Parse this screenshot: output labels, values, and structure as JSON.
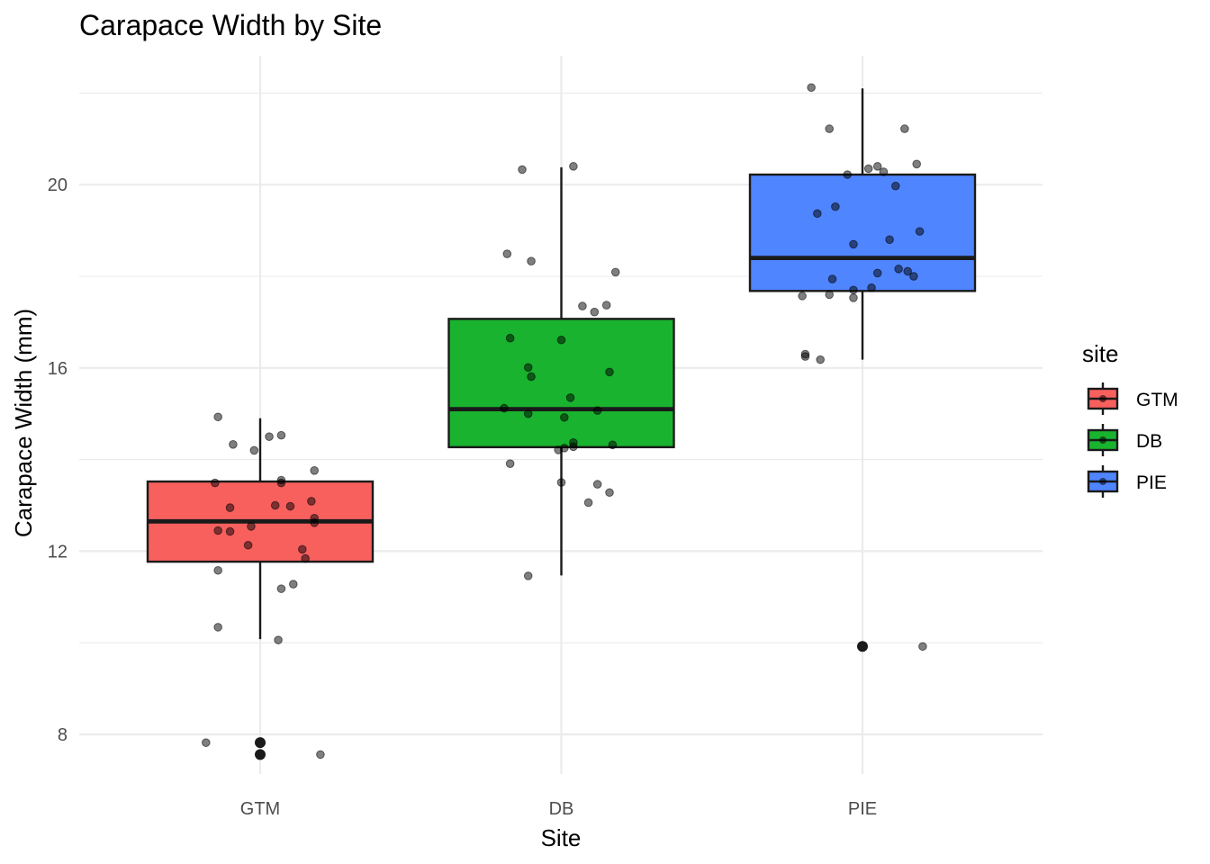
{
  "chart_data": {
    "type": "box",
    "title": "Carapace Width by Site",
    "xlabel": "Site",
    "ylabel": "Carapace Width (mm)",
    "ylim": [
      6.8,
      23.0
    ],
    "yticks": [
      8,
      12,
      16,
      20
    ],
    "grid": true,
    "legend": {
      "title": "site",
      "position": "right"
    },
    "categories": [
      "GTM",
      "DB",
      "PIE"
    ],
    "colors": {
      "GTM": "#f8605e",
      "DB": "#19b32f",
      "PIE": "#4f85ff"
    },
    "boxes": [
      {
        "name": "GTM",
        "q1": 11.77,
        "median": 12.65,
        "q3": 13.52,
        "whisker_low": 10.08,
        "whisker_high": 14.9,
        "outliers": [
          7.82,
          7.56
        ]
      },
      {
        "name": "DB",
        "q1": 14.27,
        "median": 15.1,
        "q3": 17.07,
        "whisker_low": 11.47,
        "whisker_high": 20.38,
        "outliers": []
      },
      {
        "name": "PIE",
        "q1": 17.68,
        "median": 18.4,
        "q3": 20.22,
        "whisker_low": 16.18,
        "whisker_high": 22.1,
        "outliers": [
          9.92
        ]
      }
    ],
    "points": [
      {
        "site": "GTM",
        "dx": -0.18,
        "y": 7.82
      },
      {
        "site": "GTM",
        "dx": 0.2,
        "y": 7.56
      },
      {
        "site": "GTM",
        "dx": -0.14,
        "y": 14.93
      },
      {
        "site": "GTM",
        "dx": -0.09,
        "y": 14.33
      },
      {
        "site": "GTM",
        "dx": -0.02,
        "y": 14.2
      },
      {
        "site": "GTM",
        "dx": 0.03,
        "y": 14.5
      },
      {
        "site": "GTM",
        "dx": 0.07,
        "y": 14.53
      },
      {
        "site": "GTM",
        "dx": 0.18,
        "y": 13.76
      },
      {
        "site": "GTM",
        "dx": -0.15,
        "y": 13.49
      },
      {
        "site": "GTM",
        "dx": 0.07,
        "y": 13.55
      },
      {
        "site": "GTM",
        "dx": 0.07,
        "y": 13.49
      },
      {
        "site": "GTM",
        "dx": 0.17,
        "y": 13.09
      },
      {
        "site": "GTM",
        "dx": -0.1,
        "y": 12.95
      },
      {
        "site": "GTM",
        "dx": 0.05,
        "y": 13.0
      },
      {
        "site": "GTM",
        "dx": 0.1,
        "y": 12.98
      },
      {
        "site": "GTM",
        "dx": 0.18,
        "y": 12.72
      },
      {
        "site": "GTM",
        "dx": 0.18,
        "y": 12.62
      },
      {
        "site": "GTM",
        "dx": -0.03,
        "y": 12.54
      },
      {
        "site": "GTM",
        "dx": -0.14,
        "y": 12.45
      },
      {
        "site": "GTM",
        "dx": -0.1,
        "y": 12.43
      },
      {
        "site": "GTM",
        "dx": -0.04,
        "y": 12.13
      },
      {
        "site": "GTM",
        "dx": 0.14,
        "y": 12.04
      },
      {
        "site": "GTM",
        "dx": 0.15,
        "y": 11.84
      },
      {
        "site": "GTM",
        "dx": -0.14,
        "y": 11.58
      },
      {
        "site": "GTM",
        "dx": 0.11,
        "y": 11.28
      },
      {
        "site": "GTM",
        "dx": 0.07,
        "y": 11.18
      },
      {
        "site": "GTM",
        "dx": -0.14,
        "y": 10.34
      },
      {
        "site": "GTM",
        "dx": 0.06,
        "y": 10.06
      },
      {
        "site": "DB",
        "dx": -0.13,
        "y": 20.33
      },
      {
        "site": "DB",
        "dx": 0.04,
        "y": 20.4
      },
      {
        "site": "DB",
        "dx": -0.18,
        "y": 18.49
      },
      {
        "site": "DB",
        "dx": -0.1,
        "y": 18.33
      },
      {
        "site": "DB",
        "dx": 0.18,
        "y": 18.09
      },
      {
        "site": "DB",
        "dx": 0.07,
        "y": 17.35
      },
      {
        "site": "DB",
        "dx": 0.15,
        "y": 17.37
      },
      {
        "site": "DB",
        "dx": 0.11,
        "y": 17.22
      },
      {
        "site": "DB",
        "dx": -0.17,
        "y": 16.65
      },
      {
        "site": "DB",
        "dx": 0.0,
        "y": 16.61
      },
      {
        "site": "DB",
        "dx": -0.11,
        "y": 16.01
      },
      {
        "site": "DB",
        "dx": -0.1,
        "y": 15.81
      },
      {
        "site": "DB",
        "dx": 0.16,
        "y": 15.91
      },
      {
        "site": "DB",
        "dx": 0.03,
        "y": 15.35
      },
      {
        "site": "DB",
        "dx": -0.19,
        "y": 15.12
      },
      {
        "site": "DB",
        "dx": -0.11,
        "y": 15.0
      },
      {
        "site": "DB",
        "dx": 0.12,
        "y": 15.07
      },
      {
        "site": "DB",
        "dx": 0.01,
        "y": 14.92
      },
      {
        "site": "DB",
        "dx": 0.04,
        "y": 14.37
      },
      {
        "site": "DB",
        "dx": 0.17,
        "y": 14.32
      },
      {
        "site": "DB",
        "dx": 0.04,
        "y": 14.28
      },
      {
        "site": "DB",
        "dx": 0.01,
        "y": 14.25
      },
      {
        "site": "DB",
        "dx": -0.01,
        "y": 14.21
      },
      {
        "site": "DB",
        "dx": -0.17,
        "y": 13.91
      },
      {
        "site": "DB",
        "dx": 0.0,
        "y": 13.5
      },
      {
        "site": "DB",
        "dx": 0.12,
        "y": 13.46
      },
      {
        "site": "DB",
        "dx": 0.16,
        "y": 13.28
      },
      {
        "site": "DB",
        "dx": 0.09,
        "y": 13.06
      },
      {
        "site": "DB",
        "dx": -0.11,
        "y": 11.46
      },
      {
        "site": "PIE",
        "dx": -0.17,
        "y": 22.12
      },
      {
        "site": "PIE",
        "dx": -0.11,
        "y": 21.22
      },
      {
        "site": "PIE",
        "dx": 0.14,
        "y": 21.22
      },
      {
        "site": "PIE",
        "dx": 0.18,
        "y": 20.45
      },
      {
        "site": "PIE",
        "dx": 0.05,
        "y": 20.4
      },
      {
        "site": "PIE",
        "dx": 0.02,
        "y": 20.35
      },
      {
        "site": "PIE",
        "dx": 0.07,
        "y": 20.28
      },
      {
        "site": "PIE",
        "dx": -0.05,
        "y": 20.22
      },
      {
        "site": "PIE",
        "dx": 0.11,
        "y": 19.97
      },
      {
        "site": "PIE",
        "dx": -0.09,
        "y": 19.52
      },
      {
        "site": "PIE",
        "dx": -0.15,
        "y": 19.37
      },
      {
        "site": "PIE",
        "dx": 0.19,
        "y": 18.98
      },
      {
        "site": "PIE",
        "dx": 0.09,
        "y": 18.8
      },
      {
        "site": "PIE",
        "dx": -0.03,
        "y": 18.7
      },
      {
        "site": "PIE",
        "dx": 0.12,
        "y": 18.16
      },
      {
        "site": "PIE",
        "dx": 0.15,
        "y": 18.11
      },
      {
        "site": "PIE",
        "dx": 0.05,
        "y": 18.07
      },
      {
        "site": "PIE",
        "dx": 0.17,
        "y": 18.0
      },
      {
        "site": "PIE",
        "dx": -0.1,
        "y": 17.94
      },
      {
        "site": "PIE",
        "dx": 0.03,
        "y": 17.75
      },
      {
        "site": "PIE",
        "dx": -0.03,
        "y": 17.7
      },
      {
        "site": "PIE",
        "dx": -0.11,
        "y": 17.6
      },
      {
        "site": "PIE",
        "dx": -0.2,
        "y": 17.57
      },
      {
        "site": "PIE",
        "dx": -0.03,
        "y": 17.53
      },
      {
        "site": "PIE",
        "dx": -0.19,
        "y": 16.3
      },
      {
        "site": "PIE",
        "dx": -0.19,
        "y": 16.25
      },
      {
        "site": "PIE",
        "dx": -0.14,
        "y": 16.18
      },
      {
        "site": "PIE",
        "dx": 0.2,
        "y": 9.92
      }
    ]
  }
}
